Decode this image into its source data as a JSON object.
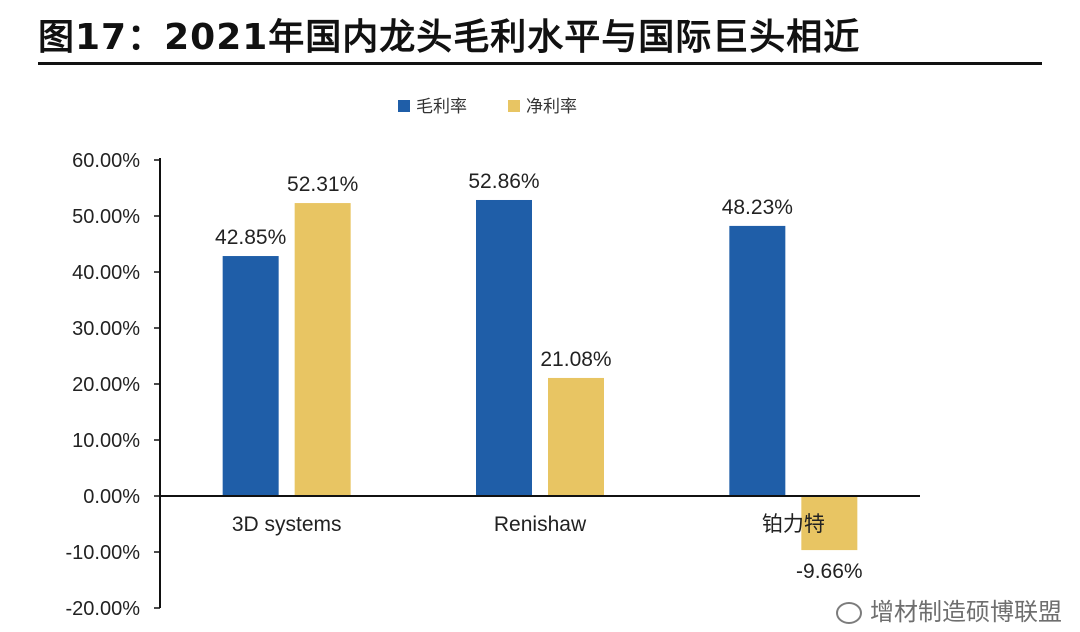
{
  "header": {
    "title": "图17：2021年国内龙头毛利水平与国际巨头相近"
  },
  "watermark": {
    "text": "增材制造硕博联盟"
  },
  "colors": {
    "gross": "#1f5ea8",
    "net": "#e8c563",
    "axis": "#111111"
  },
  "chart_data": {
    "type": "bar",
    "title": "",
    "xlabel": "",
    "ylabel": "",
    "categories": [
      "3D systems",
      "Renishaw",
      "铂力特"
    ],
    "series": [
      {
        "name": "毛利率",
        "values": [
          42.85,
          52.86,
          48.23
        ],
        "labels": [
          "42.85%",
          "52.86%",
          "48.23%"
        ]
      },
      {
        "name": "净利率",
        "values": [
          52.31,
          21.08,
          -9.66
        ],
        "labels": [
          "52.31%",
          "21.08%",
          "-9.66%"
        ]
      }
    ],
    "ylim": [
      -20,
      60
    ],
    "yticks": [
      "-20.00%",
      "-10.00%",
      "0.00%",
      "10.00%",
      "20.00%",
      "30.00%",
      "40.00%",
      "50.00%",
      "60.00%"
    ],
    "ytick_values": [
      -20,
      -10,
      0,
      10,
      20,
      30,
      40,
      50,
      60
    ],
    "grid": false,
    "legend_position": "top-center"
  }
}
